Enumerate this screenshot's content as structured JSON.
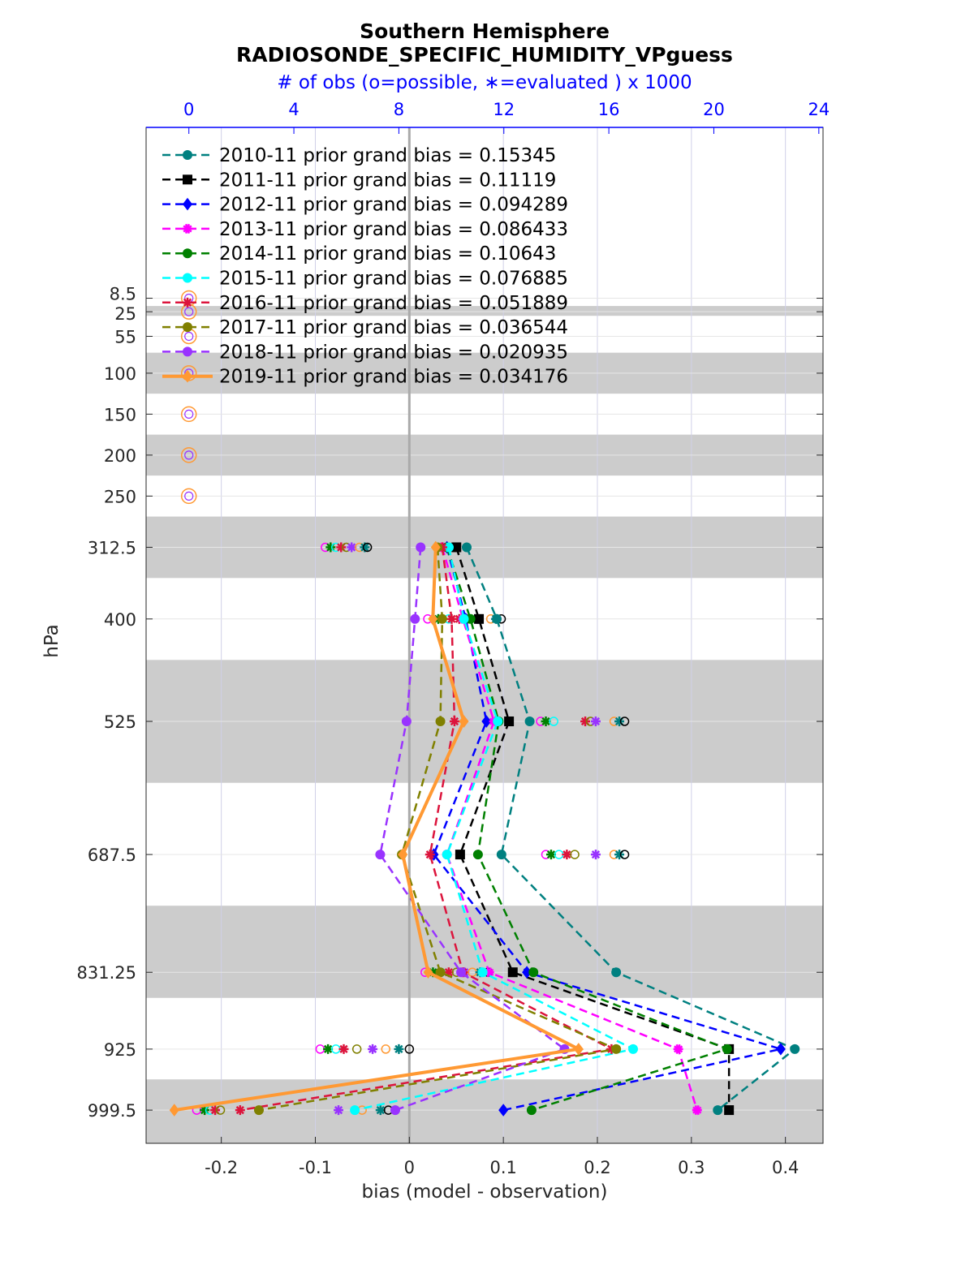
{
  "title_line1": "Southern Hemisphere",
  "title_line2": "RADIOSONDE_SPECIFIC_HUMIDITY_VPguess",
  "top_axis_label": "# of obs (o=possible, ∗=evaluated ) x 1000",
  "colors": {
    "axis": "#262626",
    "top_axis": "#0000ff",
    "grid": "#d0d0e8",
    "band": "#cccccc",
    "zero_line": "#aaaaaa"
  },
  "chart_data": {
    "type": "line",
    "title": "Southern Hemisphere\nRADIOSONDE_SPECIFIC_HUMIDITY_VPguess",
    "xlabel": "bias (model - observation)",
    "ylabel": "hPa",
    "x2label": "# of obs (o=possible, ∗=evaluated ) x 1000",
    "xlim": [
      -0.28,
      0.44
    ],
    "x2lim": [
      -1.63,
      24.16
    ],
    "xticks": [
      -0.2,
      -0.1,
      0,
      0.1,
      0.2,
      0.3,
      0.4
    ],
    "xtick_labels": [
      "-0.2",
      "-0.1",
      "0",
      "0.1",
      "0.2",
      "0.3",
      "0.4"
    ],
    "x2ticks": [
      0,
      4,
      8,
      12,
      16,
      20,
      24
    ],
    "x2tick_labels": [
      "0",
      "4",
      "8",
      "12",
      "16",
      "20",
      "24"
    ],
    "levels": [
      8.5,
      25,
      55,
      100,
      150,
      200,
      250,
      312.5,
      400,
      525,
      687.5,
      831.25,
      925,
      999.5
    ],
    "level_labels": [
      "8.5",
      "25",
      "55",
      "100",
      "150",
      "200",
      "250",
      "312.5",
      "400",
      "525",
      "687.5",
      "831.25",
      "925",
      "999.5"
    ],
    "ylim_display": [
      1040,
      -200
    ],
    "bands": [
      [
        18,
        30
      ],
      [
        75,
        125
      ],
      [
        175,
        225
      ],
      [
        275,
        350
      ],
      [
        450,
        600
      ],
      [
        750,
        862.5
      ],
      [
        962,
        1040
      ]
    ],
    "grid": true,
    "legend_position": "top-left",
    "series": [
      {
        "name": "2010-11 prior grand bias = 0.15345",
        "color": "#008080",
        "marker": "circle",
        "line": "dashed",
        "points": [
          [
            0.061,
            312.5
          ],
          [
            0.093,
            400
          ],
          [
            0.128,
            525
          ],
          [
            0.098,
            687.5
          ],
          [
            0.22,
            831.25
          ],
          [
            0.41,
            925
          ],
          [
            0.328,
            999.5
          ]
        ]
      },
      {
        "name": "2011-11 prior grand bias = 0.11119",
        "color": "#000000",
        "marker": "square",
        "line": "dashed",
        "points": [
          [
            0.05,
            312.5
          ],
          [
            0.074,
            400
          ],
          [
            0.106,
            525
          ],
          [
            0.054,
            687.5
          ],
          [
            0.11,
            831.25
          ],
          [
            0.34,
            925
          ],
          [
            0.34,
            999.5
          ]
        ]
      },
      {
        "name": "2012-11 prior grand bias = 0.094289",
        "color": "#0000ff",
        "marker": "diamond",
        "line": "dashed",
        "points": [
          [
            0.04,
            312.5
          ],
          [
            0.06,
            400
          ],
          [
            0.082,
            525
          ],
          [
            0.026,
            687.5
          ],
          [
            0.125,
            831.25
          ],
          [
            0.395,
            925
          ],
          [
            0.1,
            999.5
          ]
        ]
      },
      {
        "name": "2013-11 prior grand bias = 0.086433",
        "color": "#ff00ff",
        "marker": "star",
        "line": "dashed",
        "points": [
          [
            0.035,
            312.5
          ],
          [
            0.057,
            400
          ],
          [
            0.09,
            525
          ],
          [
            0.04,
            687.5
          ],
          [
            0.085,
            831.25
          ],
          [
            0.286,
            925
          ],
          [
            0.306,
            999.5
          ]
        ]
      },
      {
        "name": "2014-11 prior grand bias = 0.10643",
        "color": "#008000",
        "marker": "hexagon",
        "line": "dashed",
        "points": [
          [
            0.04,
            312.5
          ],
          [
            0.065,
            400
          ],
          [
            0.095,
            525
          ],
          [
            0.073,
            687.5
          ],
          [
            0.132,
            831.25
          ],
          [
            0.338,
            925
          ],
          [
            0.13,
            999.5
          ]
        ]
      },
      {
        "name": "2015-11 prior grand bias = 0.076885",
        "color": "#00ffff",
        "marker": "hexagon",
        "line": "dashed",
        "points": [
          [
            0.042,
            312.5
          ],
          [
            0.058,
            400
          ],
          [
            0.094,
            525
          ],
          [
            0.04,
            687.5
          ],
          [
            0.078,
            831.25
          ],
          [
            0.238,
            925
          ],
          [
            -0.058,
            999.5
          ]
        ]
      },
      {
        "name": "2016-11 prior grand bias = 0.051889",
        "color": "#dc143c",
        "marker": "asterisk",
        "line": "dashed",
        "points": [
          [
            0.035,
            312.5
          ],
          [
            0.045,
            400
          ],
          [
            0.048,
            525
          ],
          [
            0.022,
            687.5
          ],
          [
            0.057,
            831.25
          ],
          [
            0.215,
            925
          ],
          [
            -0.18,
            999.5
          ]
        ]
      },
      {
        "name": "2017-11 prior grand bias = 0.036544",
        "color": "#808000",
        "marker": "circle",
        "line": "dashed",
        "points": [
          [
            0.03,
            312.5
          ],
          [
            0.035,
            400
          ],
          [
            0.033,
            525
          ],
          [
            -0.008,
            687.5
          ],
          [
            0.033,
            831.25
          ],
          [
            0.22,
            925
          ],
          [
            -0.16,
            999.5
          ]
        ]
      },
      {
        "name": "2018-11 prior grand bias = 0.020935",
        "color": "#9933ff",
        "marker": "hexagon",
        "line": "dashed",
        "points": [
          [
            0.012,
            312.5
          ],
          [
            0.006,
            400
          ],
          [
            -0.003,
            525
          ],
          [
            -0.031,
            687.5
          ],
          [
            0.055,
            831.25
          ],
          [
            0.165,
            925
          ],
          [
            -0.015,
            999.5
          ]
        ]
      },
      {
        "name": "2019-11 prior grand bias = 0.034176",
        "color": "#ff9933",
        "marker": "diamond",
        "line": "solid",
        "points": [
          [
            0.028,
            312.5
          ],
          [
            0.025,
            400
          ],
          [
            0.058,
            525
          ],
          [
            -0.007,
            687.5
          ],
          [
            0.02,
            831.25
          ],
          [
            0.18,
            925
          ],
          [
            -0.25,
            999.5
          ]
        ]
      }
    ],
    "obs_counts": {
      "note_units": "x 1000",
      "possible_ring_levels": [
        8.5,
        25,
        55,
        100,
        150,
        200,
        250
      ],
      "possible_ring_value": 0,
      "clusters": [
        {
          "level": 312.5,
          "values": [
            5.2,
            5.4,
            5.6,
            5.8,
            6.0,
            6.2,
            6.5,
            6.7,
            6.8
          ]
        },
        {
          "level": 400,
          "values": [
            9.1,
            9.5,
            9.9,
            10.3,
            10.6,
            11.0,
            11.5,
            11.7,
            11.9
          ]
        },
        {
          "level": 525,
          "values": [
            13.4,
            13.6,
            13.9,
            15.1,
            15.3,
            15.5,
            16.2,
            16.4,
            16.6
          ]
        },
        {
          "level": 687.5,
          "values": [
            13.6,
            13.8,
            14.1,
            14.4,
            14.7,
            15.5,
            16.2,
            16.4,
            16.6
          ]
        },
        {
          "level": 831.25,
          "values": [
            9.0,
            9.3,
            9.6,
            9.9,
            10.2,
            10.5,
            10.8,
            11.1,
            11.4
          ]
        },
        {
          "level": 925,
          "values": [
            5.0,
            5.3,
            5.6,
            5.9,
            6.4,
            7.0,
            7.5,
            8.0,
            8.4
          ]
        },
        {
          "level": 999.5,
          "values": [
            0.3,
            0.6,
            0.8,
            1.0,
            1.2,
            5.7,
            6.6,
            7.3,
            7.6
          ]
        }
      ]
    }
  }
}
